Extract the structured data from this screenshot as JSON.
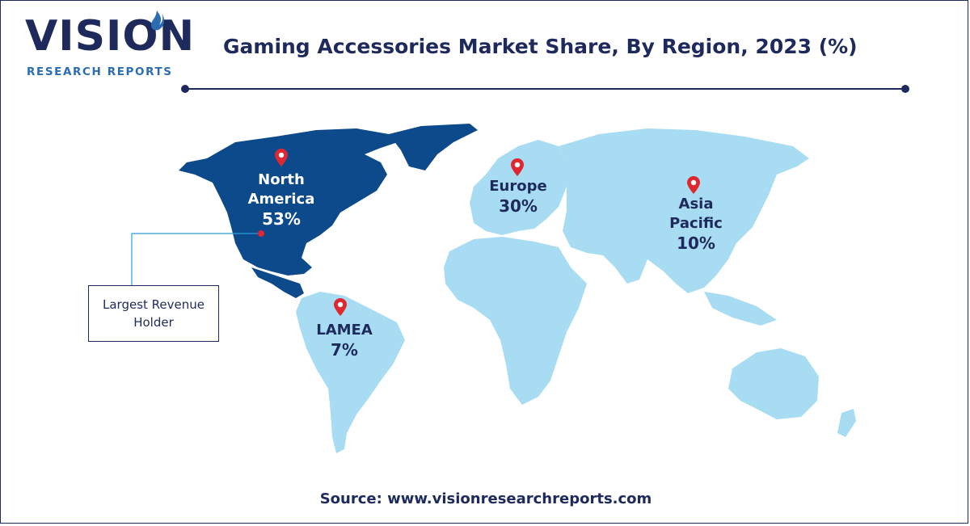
{
  "brand": {
    "name": "VISION",
    "tagline": "RESEARCH REPORTS"
  },
  "title": "Gaming Accessories Market Share, By Region, 2023 (%)",
  "regions": [
    {
      "id": "north-america",
      "line1": "North",
      "line2": "America",
      "value": "53%",
      "share": 53,
      "color": "#0d4a8c"
    },
    {
      "id": "europe",
      "line1": "Europe",
      "line2": "",
      "value": "30%",
      "share": 30,
      "color": "#a8dcf2"
    },
    {
      "id": "asia-pacific",
      "line1": "Asia",
      "line2": "Pacific",
      "value": "10%",
      "share": 10,
      "color": "#a8dcf2"
    },
    {
      "id": "lamea",
      "line1": "LAMEA",
      "line2": "",
      "value": "7%",
      "share": 7,
      "color": "#a8dcf2"
    }
  ],
  "callout": {
    "line1": "Largest Revenue",
    "line2": "Holder"
  },
  "source": "Source: www.visionresearchreports.com",
  "colors": {
    "navy": "#1f2a5c",
    "highlight_region": "#0d4a8c",
    "other_regions": "#a8dcf2",
    "pin": "#e0262f",
    "brand_blue": "#2a6db3"
  }
}
